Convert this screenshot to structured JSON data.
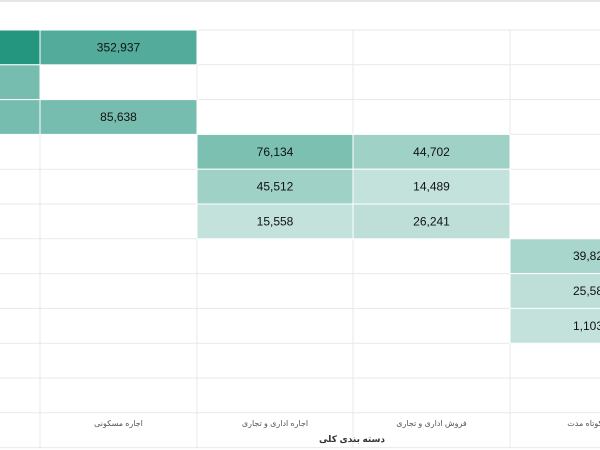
{
  "chart_data": {
    "type": "heatmap",
    "title": "",
    "xlabel": "دسته بندی کلی",
    "ylabel": "",
    "x_categories": [
      "",
      "اجاره مسکونی",
      "اجاره اداری و تجاری",
      "فروش اداری و تجاری",
      "اجاره کوتاه مدت"
    ],
    "x_tick_labels": [
      "",
      "اجاره مسکونی",
      "اجاره اداری و تجاری",
      "فروش اداری و تجاری",
      "ه کوتاه مدت"
    ],
    "row_count": 12,
    "cells": [
      {
        "row": 0,
        "col": 0,
        "value": null,
        "label": "",
        "intensity": 0.95
      },
      {
        "row": 0,
        "col": 1,
        "value": 352937,
        "label": "352,937",
        "intensity": 0.72
      },
      {
        "row": 1,
        "col": 0,
        "value": null,
        "label": "",
        "intensity": 0.55
      },
      {
        "row": 2,
        "col": 0,
        "value": null,
        "label": "",
        "intensity": 0.55
      },
      {
        "row": 2,
        "col": 1,
        "value": 85638,
        "label": "85,638",
        "intensity": 0.55
      },
      {
        "row": 3,
        "col": 2,
        "value": 76134,
        "label": "76,134",
        "intensity": 0.52
      },
      {
        "row": 3,
        "col": 3,
        "value": 44702,
        "label": "44,702",
        "intensity": 0.35
      },
      {
        "row": 4,
        "col": 2,
        "value": 45512,
        "label": "45,512",
        "intensity": 0.35
      },
      {
        "row": 4,
        "col": 3,
        "value": 14489,
        "label": "14,489",
        "intensity": 0.17
      },
      {
        "row": 5,
        "col": 2,
        "value": 15558,
        "label": "15,558",
        "intensity": 0.17
      },
      {
        "row": 5,
        "col": 3,
        "value": 26241,
        "label": "26,241",
        "intensity": 0.2
      },
      {
        "row": 6,
        "col": 4,
        "value": null,
        "label": "39,82",
        "intensity": 0.3
      },
      {
        "row": 7,
        "col": 4,
        "value": null,
        "label": "25,58",
        "intensity": 0.2
      },
      {
        "row": 8,
        "col": 4,
        "value": null,
        "label": "1,103",
        "intensity": 0.17
      }
    ],
    "color_scale": {
      "low": "#e6f3ef",
      "high": "#1a917a"
    },
    "grid": true,
    "legend": "none"
  }
}
